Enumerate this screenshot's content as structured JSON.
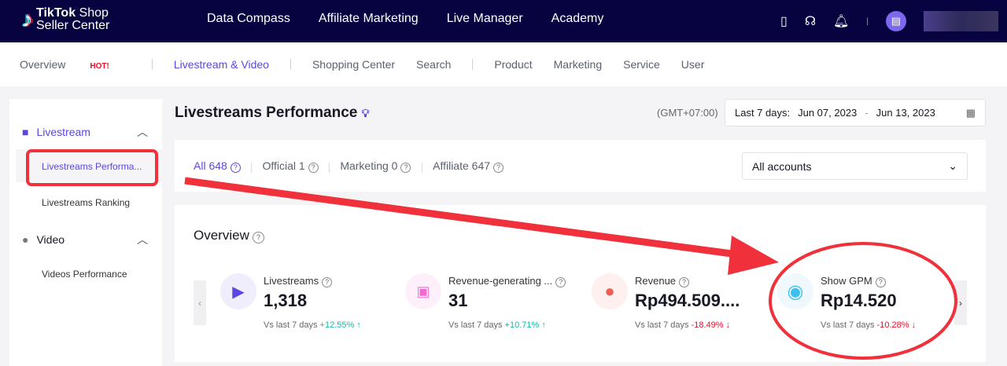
{
  "header": {
    "logo_line1_bold": "TikTok",
    "logo_line1": " Shop",
    "logo_line2": "Seller Center",
    "nav": [
      "Data Compass",
      "Affiliate Marketing",
      "Live Manager",
      "Academy"
    ]
  },
  "subnav": {
    "items": [
      "Overview",
      "Livestream & Video",
      "Shopping Center",
      "Search",
      "Product",
      "Marketing",
      "Service",
      "User"
    ],
    "hot": "HOT!"
  },
  "sidebar": {
    "livestream": "Livestream",
    "livestream_items": [
      "Livestreams Performa...",
      "Livestreams Ranking"
    ],
    "video": "Video",
    "video_items": [
      "Videos Performance"
    ]
  },
  "main": {
    "title": "Livestreams Performance",
    "timezone": "(GMT+07:00)",
    "date_label": "Last 7 days:",
    "date_from": "Jun 07, 2023",
    "date_sep": "-",
    "date_to": "Jun 13, 2023",
    "tabs": [
      "All 648",
      "Official 1",
      "Marketing 0",
      "Affiliate 647"
    ],
    "account": "All accounts",
    "overview": "Overview",
    "metrics": [
      {
        "label": "Livestreams",
        "value": "1,318",
        "vs": "Vs last 7 days",
        "change": "+12.55%",
        "dir": "up"
      },
      {
        "label": "Revenue-generating ...",
        "value": "31",
        "vs": "Vs last 7 days",
        "change": "+10.71%",
        "dir": "up"
      },
      {
        "label": "Revenue",
        "value": "Rp494.509....",
        "vs": "Vs last 7 days",
        "change": "-18.49%",
        "dir": "down"
      },
      {
        "label": "Show GPM",
        "value": "Rp14.520",
        "vs": "Vs last 7 days",
        "change": "-10.28%",
        "dir": "down"
      }
    ]
  },
  "colors": {
    "header": "#070341",
    "accent": "#5b47e0",
    "annotation": "#f0303a"
  }
}
